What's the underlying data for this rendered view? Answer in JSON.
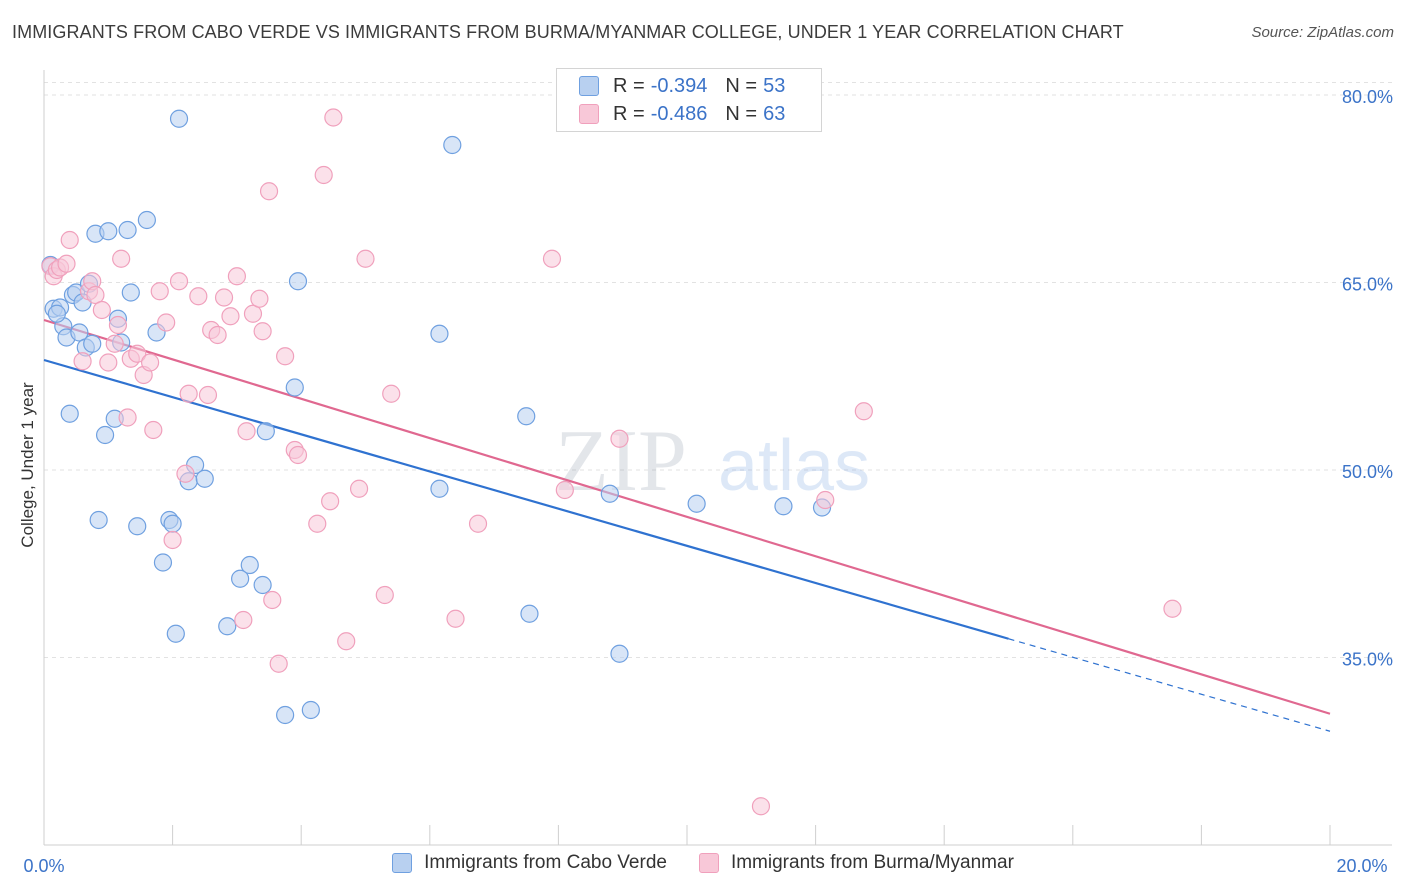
{
  "title": "IMMIGRANTS FROM CABO VERDE VS IMMIGRANTS FROM BURMA/MYANMAR COLLEGE, UNDER 1 YEAR CORRELATION CHART",
  "source": "Source: ZipAtlas.com",
  "watermark": {
    "zip": "ZIP",
    "atlas": "atlas"
  },
  "legend": {
    "rows": [
      {
        "r_label": "R =",
        "r_value": "-0.394",
        "n_label": "N =",
        "n_value": "53"
      },
      {
        "r_label": "R =",
        "r_value": "-0.486",
        "n_label": "N =",
        "n_value": "63"
      }
    ]
  },
  "chart_data": {
    "type": "scatter",
    "xlabel": "",
    "ylabel": "College, Under 1 year",
    "xlim": [
      0,
      20
    ],
    "ylim": [
      20,
      82
    ],
    "x_tick_labels": [
      "0.0%",
      "20.0%"
    ],
    "y_ticks": [
      35,
      50,
      65,
      80
    ],
    "y_tick_labels": [
      "35.0%",
      "50.0%",
      "65.0%",
      "80.0%"
    ],
    "series": [
      {
        "name": "Immigrants from Cabo Verde",
        "color": "#6fa0e0",
        "fill": "#b8d0f0",
        "line_color": "#2f72d0",
        "trend": {
          "x0": 0.0,
          "y0": 58.8,
          "x1": 15.0,
          "y1": 36.5,
          "dash_x1": 20.0,
          "dash_y1": 29.1
        },
        "points": [
          [
            0.1,
            66.4
          ],
          [
            0.15,
            62.9
          ],
          [
            0.25,
            63.0
          ],
          [
            0.3,
            61.5
          ],
          [
            0.35,
            60.6
          ],
          [
            0.4,
            54.5
          ],
          [
            0.45,
            64.0
          ],
          [
            0.5,
            64.2
          ],
          [
            0.55,
            61.0
          ],
          [
            0.6,
            63.4
          ],
          [
            0.65,
            59.8
          ],
          [
            0.7,
            64.9
          ],
          [
            0.75,
            60.1
          ],
          [
            0.8,
            68.9
          ],
          [
            0.85,
            46.0
          ],
          [
            0.95,
            52.8
          ],
          [
            1.0,
            69.1
          ],
          [
            1.1,
            54.1
          ],
          [
            1.15,
            62.1
          ],
          [
            1.2,
            60.2
          ],
          [
            1.3,
            69.2
          ],
          [
            1.35,
            64.2
          ],
          [
            1.45,
            45.5
          ],
          [
            1.6,
            70.0
          ],
          [
            1.75,
            61.0
          ],
          [
            1.85,
            42.6
          ],
          [
            1.95,
            46.0
          ],
          [
            2.0,
            45.7
          ],
          [
            2.05,
            36.9
          ],
          [
            2.1,
            78.1
          ],
          [
            2.25,
            49.1
          ],
          [
            2.35,
            50.4
          ],
          [
            2.5,
            49.3
          ],
          [
            2.85,
            37.5
          ],
          [
            3.05,
            41.3
          ],
          [
            3.2,
            42.4
          ],
          [
            3.4,
            40.8
          ],
          [
            3.45,
            53.1
          ],
          [
            3.75,
            30.4
          ],
          [
            3.9,
            56.6
          ],
          [
            3.95,
            65.1
          ],
          [
            4.15,
            30.8
          ],
          [
            6.15,
            60.9
          ],
          [
            6.15,
            48.5
          ],
          [
            6.35,
            76.0
          ],
          [
            7.5,
            54.3
          ],
          [
            7.55,
            38.5
          ],
          [
            8.8,
            48.1
          ],
          [
            8.95,
            35.3
          ],
          [
            10.15,
            47.3
          ],
          [
            11.5,
            47.1
          ],
          [
            12.1,
            47.0
          ],
          [
            0.2,
            62.5
          ]
        ]
      },
      {
        "name": "Immigrants from Burma/Myanmar",
        "color": "#f0a0bc",
        "fill": "#f8c8d8",
        "line_color": "#e06890",
        "trend": {
          "x0": 0.0,
          "y0": 62.0,
          "x1": 20.0,
          "y1": 30.5
        },
        "points": [
          [
            0.1,
            66.3
          ],
          [
            0.15,
            65.5
          ],
          [
            0.2,
            66.0
          ],
          [
            0.25,
            66.2
          ],
          [
            0.35,
            66.5
          ],
          [
            0.4,
            68.4
          ],
          [
            0.6,
            58.7
          ],
          [
            0.7,
            64.3
          ],
          [
            0.75,
            65.1
          ],
          [
            0.8,
            64.0
          ],
          [
            0.9,
            62.8
          ],
          [
            1.0,
            58.6
          ],
          [
            1.1,
            60.1
          ],
          [
            1.15,
            61.6
          ],
          [
            1.2,
            66.9
          ],
          [
            1.3,
            54.2
          ],
          [
            1.35,
            58.9
          ],
          [
            1.45,
            59.3
          ],
          [
            1.55,
            57.6
          ],
          [
            1.65,
            58.6
          ],
          [
            1.7,
            53.2
          ],
          [
            1.8,
            64.3
          ],
          [
            1.9,
            61.8
          ],
          [
            2.0,
            44.4
          ],
          [
            2.1,
            65.1
          ],
          [
            2.2,
            49.7
          ],
          [
            2.25,
            56.1
          ],
          [
            2.4,
            63.9
          ],
          [
            2.55,
            56.0
          ],
          [
            2.6,
            61.2
          ],
          [
            2.7,
            60.8
          ],
          [
            2.8,
            63.8
          ],
          [
            2.9,
            62.3
          ],
          [
            3.0,
            65.5
          ],
          [
            3.1,
            38.0
          ],
          [
            3.15,
            53.1
          ],
          [
            3.25,
            62.5
          ],
          [
            3.35,
            63.7
          ],
          [
            3.4,
            61.1
          ],
          [
            3.5,
            72.3
          ],
          [
            3.55,
            39.6
          ],
          [
            3.65,
            34.5
          ],
          [
            3.75,
            59.1
          ],
          [
            3.9,
            51.6
          ],
          [
            3.95,
            51.2
          ],
          [
            4.25,
            45.7
          ],
          [
            4.35,
            73.6
          ],
          [
            4.45,
            47.5
          ],
          [
            4.5,
            78.2
          ],
          [
            4.7,
            36.3
          ],
          [
            4.9,
            48.5
          ],
          [
            5.0,
            66.9
          ],
          [
            5.3,
            40.0
          ],
          [
            5.4,
            56.1
          ],
          [
            6.4,
            38.1
          ],
          [
            6.75,
            45.7
          ],
          [
            7.9,
            66.9
          ],
          [
            8.1,
            48.4
          ],
          [
            8.95,
            52.5
          ],
          [
            11.15,
            23.1
          ],
          [
            12.15,
            47.6
          ],
          [
            12.75,
            54.7
          ],
          [
            17.55,
            38.9
          ]
        ]
      }
    ]
  }
}
